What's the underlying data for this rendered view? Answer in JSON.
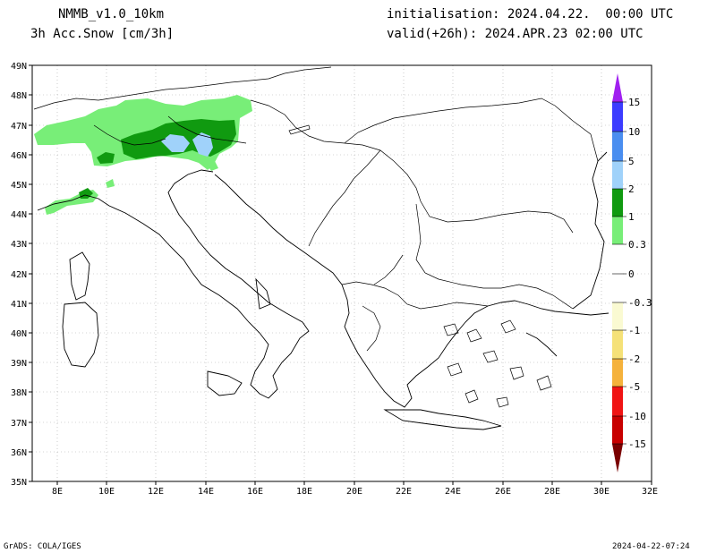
{
  "header": {
    "model": "NMMB_v1.0_10km",
    "field": "3h Acc.Snow [cm/3h]",
    "init": "initialisation: 2024.04.22.  00:00 UTC",
    "valid": "valid(+26h): 2024.APR.23 02:00 UTC"
  },
  "footer": {
    "left": "GrADS: COLA/IGES",
    "right": "2024-04-22-07:24"
  },
  "map": {
    "lon_range": [
      7,
      32
    ],
    "lat_range": [
      35,
      49
    ],
    "lat_ticks": [
      "49N",
      "48N",
      "47N",
      "46N",
      "45N",
      "44N",
      "43N",
      "42N",
      "41N",
      "40N",
      "39N",
      "38N",
      "37N",
      "36N",
      "35N"
    ],
    "lon_ticks": [
      "8E",
      "10E",
      "12E",
      "14E",
      "16E",
      "18E",
      "20E",
      "22E",
      "24E",
      "26E",
      "28E",
      "30E",
      "32E"
    ]
  },
  "colorbar": {
    "labels": [
      "15",
      "10",
      "5",
      "2",
      "1",
      "0.3",
      "0",
      "-0.3",
      "-1",
      "-2",
      "-5",
      "-10",
      "-15"
    ],
    "colors": {
      "c15": "#a020f0",
      "c10": "#3c3cff",
      "c5": "#4a8ef0",
      "c2": "#a0d2fa",
      "c1": "#109a10",
      "c03": "#78ee78",
      "cn03": "#fafad2",
      "cn1": "#f5e178",
      "cn2": "#f5b23c",
      "cn5": "#f58c3c",
      "cn10": "#f01414",
      "cn15a": "#c80000",
      "cn15b": "#7a0000"
    }
  },
  "snow_colors": {
    "light": "#78ee78",
    "medium": "#109a10",
    "heavy": "#a0d2fa"
  }
}
